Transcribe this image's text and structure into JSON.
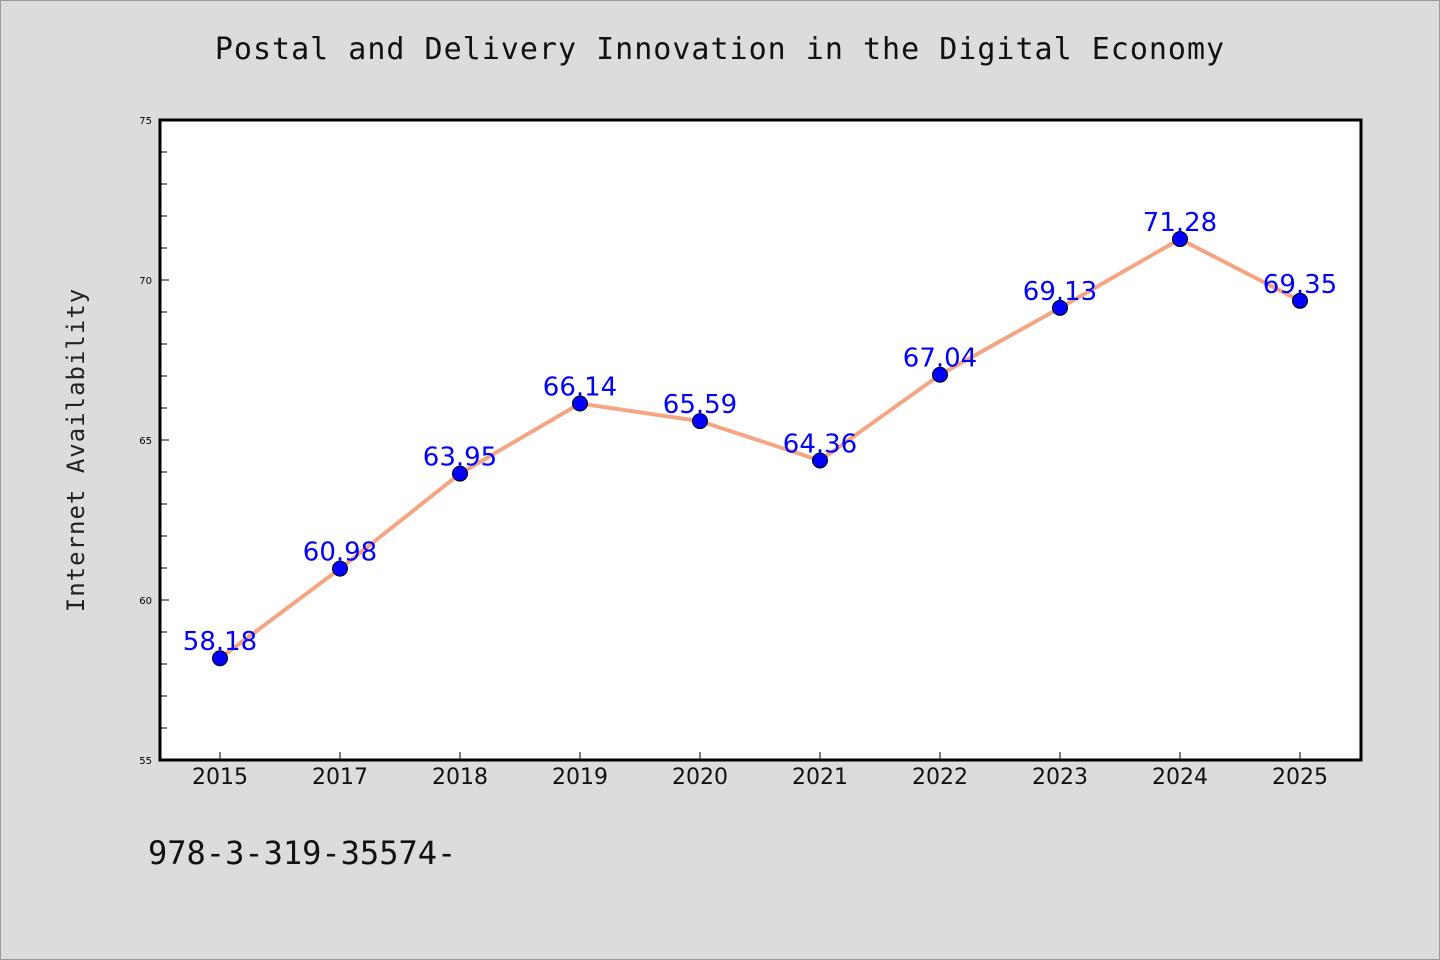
{
  "footer": {
    "code": "978-3-319-35574-"
  },
  "chart_data": {
    "type": "line",
    "title": "Postal and Delivery Innovation in the Digital Economy",
    "xlabel": "",
    "ylabel": "Internet Availability",
    "categories": [
      "2015",
      "2017",
      "2018",
      "2019",
      "2020",
      "2021",
      "2022",
      "2023",
      "2024",
      "2025"
    ],
    "series": [
      {
        "values": [
          58.18,
          60.98,
          63.95,
          66.14,
          65.59,
          64.36,
          67.04,
          69.13,
          71.28,
          69.35
        ],
        "data_labels": [
          "58.18",
          "60.98",
          "63.95",
          "66.14",
          "65.59",
          "64.36",
          "67.04",
          "69.13",
          "71.28",
          "69.35"
        ],
        "line_color": "#f4a582",
        "marker_color": "#0000ff",
        "label_color": "#0000ff"
      }
    ],
    "ylim": [
      55,
      75
    ],
    "y_ticks": [
      "55",
      "60",
      "65",
      "70",
      "75"
    ],
    "grid": false,
    "legend": "none",
    "background": "#ffffff",
    "page_background": "#dcdcdc"
  }
}
